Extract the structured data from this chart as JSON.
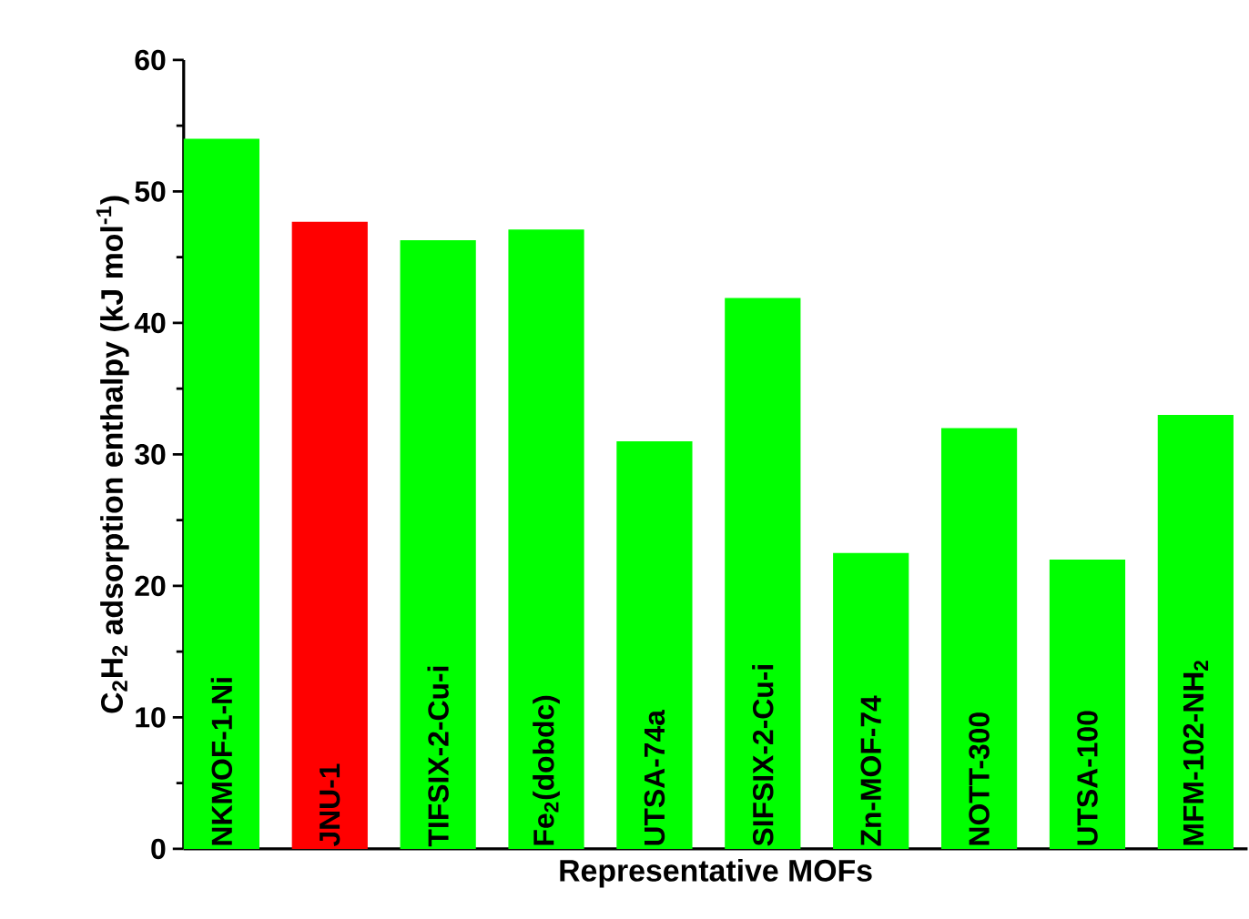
{
  "chart_data": {
    "type": "bar",
    "xlabel": "Representative MOFs",
    "ylabel": "C$_{2}$H$_{2}$ adsorption enthalpy (kJ mol$^{-1}$)",
    "categories": [
      "NKMOF-1-Ni",
      "JNU-1",
      "TIFSIX-2-Cu-i",
      "Fe$_{2}$(dobdc)",
      "UTSA-74a",
      "SIFSIX-2-Cu-i",
      "Zn-MOF-74",
      "NOTT-300",
      "UTSA-100",
      "MFM-102-NH$_{2}$"
    ],
    "values": [
      54.0,
      47.7,
      46.3,
      47.1,
      31.0,
      41.9,
      22.5,
      32.0,
      22.0,
      33.0
    ],
    "colors": [
      "#00ff00",
      "#ff0000",
      "#00ff00",
      "#00ff00",
      "#00ff00",
      "#00ff00",
      "#00ff00",
      "#00ff00",
      "#00ff00",
      "#00ff00"
    ],
    "ylim": [
      0,
      60
    ],
    "yticks": [
      0,
      10,
      20,
      30,
      40,
      50,
      60
    ]
  }
}
